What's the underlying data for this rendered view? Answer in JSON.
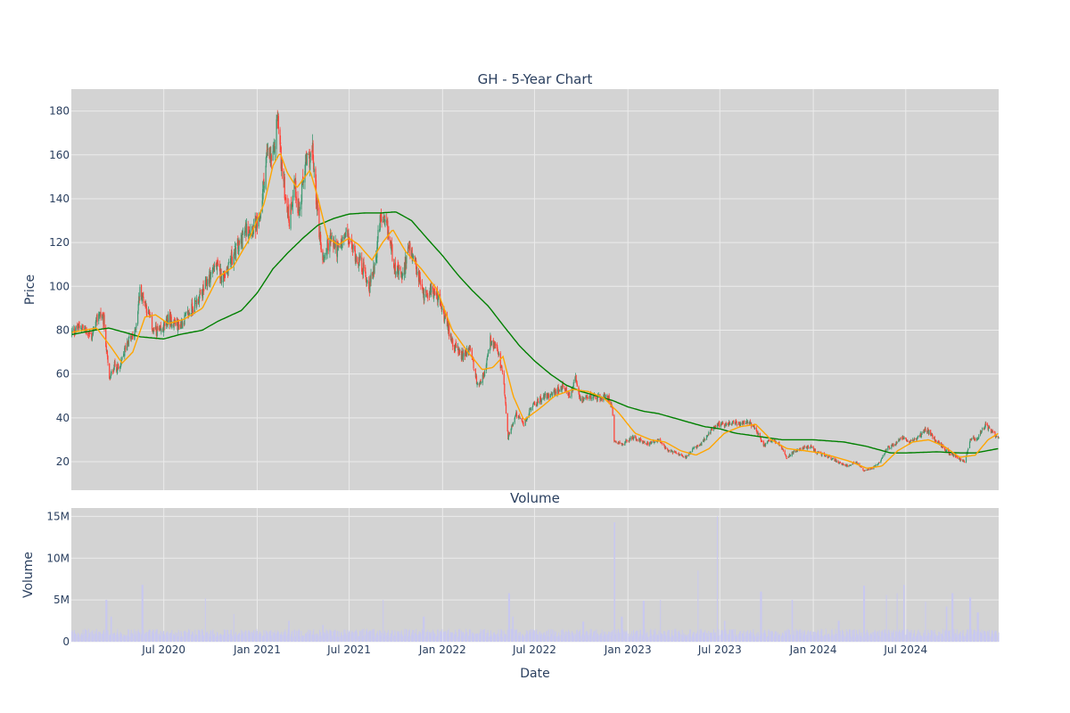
{
  "colors": {
    "plot_bg": "#d3d3d3",
    "grid": "#ebebeb",
    "up": "#3d9970",
    "down": "#ff4136",
    "ma_short": "#ffa500",
    "ma_long": "#008000",
    "volume": "#c8c8f0",
    "text": "#2a3f5f"
  },
  "chart_data": [
    {
      "type": "candlestick",
      "title": "GH - 5-Year Chart",
      "ylabel": "Price",
      "xlim": [
        "2020-01-01",
        "2024-12-31"
      ],
      "ylim": [
        7,
        190
      ],
      "yticks": [
        20,
        40,
        60,
        80,
        100,
        120,
        140,
        160,
        180
      ],
      "xticks": [
        "2020-07-01",
        "2021-01-01",
        "2021-07-01",
        "2022-01-01",
        "2022-07-01",
        "2023-01-01",
        "2023-07-01",
        "2024-01-01",
        "2024-07-01"
      ],
      "grid": true,
      "legend": "none",
      "close_anchors": [
        [
          "2020-01-02",
          79
        ],
        [
          "2020-01-20",
          82
        ],
        [
          "2020-02-10",
          77
        ],
        [
          "2020-02-25",
          88
        ],
        [
          "2020-03-05",
          84
        ],
        [
          "2020-03-16",
          57
        ],
        [
          "2020-03-25",
          64
        ],
        [
          "2020-04-05",
          62
        ],
        [
          "2020-04-20",
          75
        ],
        [
          "2020-05-05",
          78
        ],
        [
          "2020-05-15",
          98
        ],
        [
          "2020-05-25",
          93
        ],
        [
          "2020-06-10",
          80
        ],
        [
          "2020-06-25",
          79
        ],
        [
          "2020-07-10",
          85
        ],
        [
          "2020-08-01",
          82
        ],
        [
          "2020-08-20",
          88
        ],
        [
          "2020-09-15",
          97
        ],
        [
          "2020-10-10",
          110
        ],
        [
          "2020-10-25",
          104
        ],
        [
          "2020-11-10",
          112
        ],
        [
          "2020-11-25",
          118
        ],
        [
          "2020-12-10",
          126
        ],
        [
          "2021-01-05",
          128
        ],
        [
          "2021-01-20",
          160
        ],
        [
          "2021-02-01",
          157
        ],
        [
          "2021-02-10",
          178
        ],
        [
          "2021-02-20",
          150
        ],
        [
          "2021-03-05",
          130
        ],
        [
          "2021-03-15",
          148
        ],
        [
          "2021-03-25",
          133
        ],
        [
          "2021-04-05",
          155
        ],
        [
          "2021-04-20",
          161
        ],
        [
          "2021-05-01",
          130
        ],
        [
          "2021-05-10",
          112
        ],
        [
          "2021-05-25",
          122
        ],
        [
          "2021-06-10",
          116
        ],
        [
          "2021-06-25",
          124
        ],
        [
          "2021-07-10",
          116
        ],
        [
          "2021-07-25",
          110
        ],
        [
          "2021-08-10",
          100
        ],
        [
          "2021-08-20",
          110
        ],
        [
          "2021-09-01",
          131
        ],
        [
          "2021-09-15",
          125
        ],
        [
          "2021-10-01",
          107
        ],
        [
          "2021-10-15",
          104
        ],
        [
          "2021-10-25",
          118
        ],
        [
          "2021-11-15",
          104
        ],
        [
          "2021-11-25",
          96
        ],
        [
          "2021-12-10",
          99
        ],
        [
          "2021-12-25",
          94
        ],
        [
          "2022-01-10",
          82
        ],
        [
          "2022-01-25",
          72
        ],
        [
          "2022-02-10",
          68
        ],
        [
          "2022-02-25",
          72
        ],
        [
          "2022-03-10",
          55
        ],
        [
          "2022-03-25",
          60
        ],
        [
          "2022-04-05",
          75
        ],
        [
          "2022-04-20",
          70
        ],
        [
          "2022-05-01",
          57
        ],
        [
          "2022-05-10",
          31
        ],
        [
          "2022-05-25",
          42
        ],
        [
          "2022-06-10",
          37
        ],
        [
          "2022-06-25",
          45
        ],
        [
          "2022-07-10",
          48
        ],
        [
          "2022-07-25",
          50
        ],
        [
          "2022-08-10",
          52
        ],
        [
          "2022-08-25",
          54
        ],
        [
          "2022-09-10",
          50
        ],
        [
          "2022-09-20",
          58
        ],
        [
          "2022-10-01",
          47
        ],
        [
          "2022-10-20",
          50
        ],
        [
          "2022-11-10",
          49
        ],
        [
          "2022-11-20",
          51
        ],
        [
          "2022-12-01",
          45
        ],
        [
          "2022-12-05",
          30
        ],
        [
          "2022-12-20",
          28
        ],
        [
          "2023-01-10",
          31
        ],
        [
          "2023-01-25",
          30
        ],
        [
          "2023-02-10",
          28
        ],
        [
          "2023-03-01",
          30
        ],
        [
          "2023-03-20",
          25
        ],
        [
          "2023-04-10",
          24
        ],
        [
          "2023-04-25",
          22
        ],
        [
          "2023-05-10",
          26
        ],
        [
          "2023-05-25",
          28
        ],
        [
          "2023-06-10",
          33
        ],
        [
          "2023-06-25",
          37
        ],
        [
          "2023-07-10",
          37
        ],
        [
          "2023-07-25",
          38
        ],
        [
          "2023-08-10",
          37
        ],
        [
          "2023-08-25",
          38
        ],
        [
          "2023-09-10",
          35
        ],
        [
          "2023-09-25",
          27
        ],
        [
          "2023-10-10",
          30
        ],
        [
          "2023-10-25",
          28
        ],
        [
          "2023-11-10",
          22
        ],
        [
          "2023-11-25",
          25
        ],
        [
          "2023-12-10",
          26
        ],
        [
          "2023-12-25",
          27
        ],
        [
          "2024-01-10",
          24
        ],
        [
          "2024-01-25",
          23
        ],
        [
          "2024-02-10",
          21
        ],
        [
          "2024-02-25",
          19
        ],
        [
          "2024-03-10",
          18
        ],
        [
          "2024-03-25",
          20
        ],
        [
          "2024-04-10",
          16
        ],
        [
          "2024-04-25",
          17
        ],
        [
          "2024-05-10",
          20
        ],
        [
          "2024-05-25",
          26
        ],
        [
          "2024-06-10",
          28
        ],
        [
          "2024-06-25",
          31
        ],
        [
          "2024-07-10",
          29
        ],
        [
          "2024-07-25",
          31
        ],
        [
          "2024-08-10",
          35
        ],
        [
          "2024-08-25",
          31
        ],
        [
          "2024-09-10",
          27
        ],
        [
          "2024-09-25",
          24
        ],
        [
          "2024-10-10",
          22
        ],
        [
          "2024-10-25",
          20
        ],
        [
          "2024-11-05",
          30
        ],
        [
          "2024-11-20",
          31
        ],
        [
          "2024-12-05",
          37
        ],
        [
          "2024-12-15",
          34
        ],
        [
          "2024-12-31",
          31
        ]
      ],
      "ma_short_anchors": [
        [
          "2020-01-02",
          79
        ],
        [
          "2020-02-20",
          81
        ],
        [
          "2020-03-20",
          72
        ],
        [
          "2020-04-10",
          65
        ],
        [
          "2020-05-01",
          70
        ],
        [
          "2020-05-25",
          86
        ],
        [
          "2020-06-15",
          87
        ],
        [
          "2020-07-10",
          83
        ],
        [
          "2020-08-10",
          85
        ],
        [
          "2020-09-15",
          90
        ],
        [
          "2020-10-15",
          104
        ],
        [
          "2020-11-15",
          109
        ],
        [
          "2020-12-15",
          121
        ],
        [
          "2021-01-15",
          138
        ],
        [
          "2021-02-01",
          155
        ],
        [
          "2021-02-15",
          161
        ],
        [
          "2021-03-01",
          152
        ],
        [
          "2021-03-20",
          145
        ],
        [
          "2021-04-15",
          153
        ],
        [
          "2021-05-01",
          140
        ],
        [
          "2021-05-20",
          122
        ],
        [
          "2021-06-10",
          119
        ],
        [
          "2021-07-01",
          122
        ],
        [
          "2021-07-20",
          119
        ],
        [
          "2021-08-15",
          112
        ],
        [
          "2021-09-05",
          120
        ],
        [
          "2021-09-25",
          126
        ],
        [
          "2021-10-20",
          116
        ],
        [
          "2021-11-20",
          108
        ],
        [
          "2021-12-20",
          99
        ],
        [
          "2022-01-20",
          80
        ],
        [
          "2022-02-20",
          70
        ],
        [
          "2022-03-20",
          62
        ],
        [
          "2022-04-10",
          63
        ],
        [
          "2022-04-30",
          68
        ],
        [
          "2022-05-20",
          50
        ],
        [
          "2022-06-10",
          39
        ],
        [
          "2022-07-10",
          44
        ],
        [
          "2022-08-10",
          50
        ],
        [
          "2022-09-15",
          53
        ],
        [
          "2022-10-15",
          52
        ],
        [
          "2022-11-15",
          49
        ],
        [
          "2022-12-15",
          42
        ],
        [
          "2023-01-15",
          33
        ],
        [
          "2023-02-15",
          30
        ],
        [
          "2023-03-15",
          29
        ],
        [
          "2023-04-15",
          25
        ],
        [
          "2023-05-15",
          23
        ],
        [
          "2023-06-10",
          26
        ],
        [
          "2023-07-10",
          33
        ],
        [
          "2023-08-10",
          36
        ],
        [
          "2023-09-10",
          37
        ],
        [
          "2023-10-10",
          30
        ],
        [
          "2023-11-10",
          26
        ],
        [
          "2023-12-15",
          25
        ],
        [
          "2024-01-15",
          24
        ],
        [
          "2024-02-15",
          22
        ],
        [
          "2024-03-15",
          20
        ],
        [
          "2024-04-15",
          17
        ],
        [
          "2024-05-15",
          18
        ],
        [
          "2024-06-15",
          25
        ],
        [
          "2024-07-15",
          29
        ],
        [
          "2024-08-15",
          30
        ],
        [
          "2024-09-15",
          27
        ],
        [
          "2024-10-15",
          22
        ],
        [
          "2024-11-15",
          23
        ],
        [
          "2024-12-10",
          30
        ],
        [
          "2024-12-31",
          33
        ]
      ],
      "ma_long_anchors": [
        [
          "2020-01-02",
          78
        ],
        [
          "2020-02-15",
          80
        ],
        [
          "2020-03-15",
          81
        ],
        [
          "2020-04-15",
          79
        ],
        [
          "2020-05-15",
          77
        ],
        [
          "2020-07-01",
          76
        ],
        [
          "2020-08-01",
          78
        ],
        [
          "2020-09-15",
          80
        ],
        [
          "2020-10-15",
          84
        ],
        [
          "2020-12-01",
          89
        ],
        [
          "2021-01-01",
          97
        ],
        [
          "2021-02-01",
          108
        ],
        [
          "2021-03-01",
          115
        ],
        [
          "2021-04-01",
          122
        ],
        [
          "2021-05-01",
          128
        ],
        [
          "2021-06-01",
          131
        ],
        [
          "2021-07-01",
          133
        ],
        [
          "2021-08-01",
          133.5
        ],
        [
          "2021-09-01",
          133.5
        ],
        [
          "2021-10-01",
          134
        ],
        [
          "2021-11-01",
          130
        ],
        [
          "2021-12-01",
          122
        ],
        [
          "2022-01-01",
          114
        ],
        [
          "2022-02-01",
          105
        ],
        [
          "2022-03-01",
          98
        ],
        [
          "2022-04-01",
          91
        ],
        [
          "2022-05-01",
          82
        ],
        [
          "2022-06-01",
          73
        ],
        [
          "2022-07-01",
          66
        ],
        [
          "2022-08-01",
          60
        ],
        [
          "2022-09-01",
          55
        ],
        [
          "2022-10-01",
          52
        ],
        [
          "2022-11-01",
          50
        ],
        [
          "2022-12-01",
          48
        ],
        [
          "2023-01-01",
          45
        ],
        [
          "2023-02-01",
          43
        ],
        [
          "2023-03-01",
          42
        ],
        [
          "2023-04-01",
          40
        ],
        [
          "2023-05-01",
          38
        ],
        [
          "2023-06-01",
          36
        ],
        [
          "2023-07-01",
          35
        ],
        [
          "2023-08-01",
          33
        ],
        [
          "2023-09-01",
          32
        ],
        [
          "2023-10-01",
          31
        ],
        [
          "2023-11-01",
          30
        ],
        [
          "2024-01-01",
          30
        ],
        [
          "2024-03-01",
          29
        ],
        [
          "2024-04-15",
          27
        ],
        [
          "2024-06-01",
          24
        ],
        [
          "2024-07-01",
          24
        ],
        [
          "2024-09-01",
          24.5
        ],
        [
          "2024-10-15",
          24
        ],
        [
          "2024-11-15",
          24
        ],
        [
          "2024-12-31",
          26
        ]
      ],
      "gaps": [
        [
          "2020-12-31",
          "2021-01-01"
        ]
      ]
    },
    {
      "type": "bar",
      "title": "Volume",
      "ylabel": "Volume",
      "xlabel": "Date",
      "ylim": [
        0,
        16000000
      ],
      "yticks": [
        0,
        5000000,
        10000000,
        15000000
      ],
      "ytick_labels": [
        "0",
        "5M",
        "10M",
        "15M"
      ],
      "xlim": [
        "2020-01-01",
        "2024-12-31"
      ],
      "xticks": [
        "2020-07-01",
        "2021-01-01",
        "2021-07-01",
        "2022-01-01",
        "2022-07-01",
        "2023-01-01",
        "2023-07-01",
        "2024-01-01",
        "2024-07-01"
      ],
      "xtick_labels": [
        "Jul 2020",
        "Jan 2021",
        "Jul 2021",
        "Jan 2022",
        "Jul 2022",
        "Jan 2023",
        "Jul 2023",
        "Jan 2024",
        "Jul 2024"
      ],
      "base_volume": 1100000,
      "spikes": [
        [
          "2020-03-10",
          5000000
        ],
        [
          "2020-03-20",
          3000000
        ],
        [
          "2020-05-20",
          6800000
        ],
        [
          "2020-09-20",
          5200000
        ],
        [
          "2020-11-15",
          3300000
        ],
        [
          "2021-03-05",
          2500000
        ],
        [
          "2021-05-10",
          2000000
        ],
        [
          "2021-09-05",
          5000000
        ],
        [
          "2021-11-25",
          3000000
        ],
        [
          "2022-05-12",
          5800000
        ],
        [
          "2022-05-20",
          3000000
        ],
        [
          "2022-10-05",
          2400000
        ],
        [
          "2022-12-05",
          14300000
        ],
        [
          "2022-12-20",
          3000000
        ],
        [
          "2023-02-01",
          4900000
        ],
        [
          "2023-03-05",
          5000000
        ],
        [
          "2023-05-20",
          8500000
        ],
        [
          "2023-06-25",
          15000000
        ],
        [
          "2023-07-10",
          2500000
        ],
        [
          "2023-09-20",
          6000000
        ],
        [
          "2023-11-20",
          5000000
        ],
        [
          "2024-02-20",
          2500000
        ],
        [
          "2024-04-10",
          6700000
        ],
        [
          "2024-05-25",
          5600000
        ],
        [
          "2024-06-15",
          5800000
        ],
        [
          "2024-06-28",
          6800000
        ],
        [
          "2024-08-10",
          4800000
        ],
        [
          "2024-09-20",
          4200000
        ],
        [
          "2024-10-01",
          5800000
        ],
        [
          "2024-11-05",
          5300000
        ],
        [
          "2024-11-20",
          3500000
        ]
      ]
    }
  ]
}
